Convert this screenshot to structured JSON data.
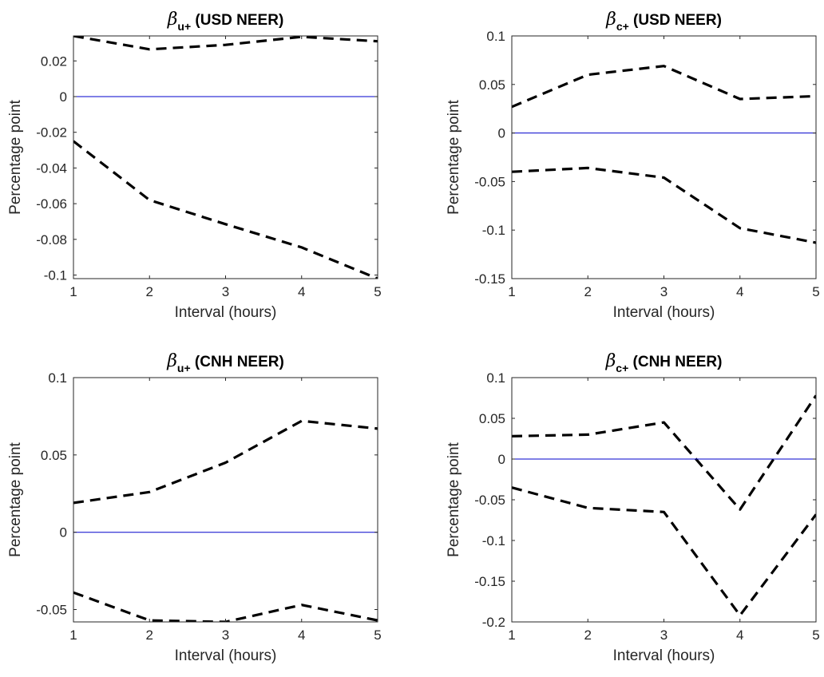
{
  "colors": {
    "bounds": "#000000",
    "zero_line": "#0000cc",
    "axes": "#262626",
    "background": "#ffffff"
  },
  "chart_data": [
    {
      "type": "line",
      "title": "β u+ (USD NEER)",
      "title_symbol": "β",
      "title_subscript": "u+",
      "title_rest": "(USD NEER)",
      "xlabel": "Interval (hours)",
      "ylabel": "Percentage point",
      "xlim": [
        1,
        5
      ],
      "ylim": [
        -0.102,
        0.034
      ],
      "x_ticks": [
        1,
        2,
        3,
        4,
        5
      ],
      "x_tick_labels": [
        "1",
        "2",
        "3",
        "4",
        "5"
      ],
      "y_ticks": [
        -0.1,
        -0.08,
        -0.06,
        -0.04,
        -0.02,
        0,
        0.02
      ],
      "y_tick_labels": [
        "-0.1",
        "-0.08",
        "-0.06",
        "-0.04",
        "-0.02",
        "0",
        "0.02"
      ],
      "x": [
        1,
        2,
        3,
        4,
        5
      ],
      "series": [
        {
          "name": "",
          "style": "dashed",
          "values": [
            0.034,
            0.0265,
            0.029,
            0.0335,
            0.031
          ]
        },
        {
          "name": "",
          "style": "dashed",
          "values": [
            -0.025,
            -0.058,
            -0.0715,
            -0.0845,
            -0.102
          ]
        },
        {
          "name": "",
          "style": "solid",
          "values": [
            0,
            0,
            0,
            0,
            0
          ]
        }
      ]
    },
    {
      "type": "line",
      "title": "β c+ (USD NEER)",
      "title_symbol": "β",
      "title_subscript": "c+",
      "title_rest": "(USD NEER)",
      "xlabel": "Interval (hours)",
      "ylabel": "Percentage point",
      "xlim": [
        1,
        5
      ],
      "ylim": [
        -0.15,
        0.1
      ],
      "x_ticks": [
        1,
        2,
        3,
        4,
        5
      ],
      "x_tick_labels": [
        "1",
        "2",
        "3",
        "4",
        "5"
      ],
      "y_ticks": [
        -0.15,
        -0.1,
        -0.05,
        0,
        0.05,
        0.1
      ],
      "y_tick_labels": [
        "-0.15",
        "-0.1",
        "-0.05",
        "0",
        "0.05",
        "0.1"
      ],
      "x": [
        1,
        2,
        3,
        4,
        5
      ],
      "series": [
        {
          "name": "",
          "style": "dashed",
          "values": [
            0.027,
            0.06,
            0.069,
            0.035,
            0.038
          ]
        },
        {
          "name": "",
          "style": "dashed",
          "values": [
            -0.04,
            -0.036,
            -0.046,
            -0.098,
            -0.113
          ]
        },
        {
          "name": "",
          "style": "solid",
          "values": [
            0,
            0,
            0,
            0,
            0
          ]
        }
      ]
    },
    {
      "type": "line",
      "title": "β u+ (CNH NEER)",
      "title_symbol": "β",
      "title_subscript": "u+",
      "title_rest": "(CNH NEER)",
      "xlabel": "Interval (hours)",
      "ylabel": "Percentage point",
      "xlim": [
        1,
        5
      ],
      "ylim": [
        -0.058,
        0.1
      ],
      "x_ticks": [
        1,
        2,
        3,
        4,
        5
      ],
      "x_tick_labels": [
        "1",
        "2",
        "3",
        "4",
        "5"
      ],
      "y_ticks": [
        -0.05,
        0,
        0.05,
        0.1
      ],
      "y_tick_labels": [
        "-0.05",
        "0",
        "0.05",
        "0.1"
      ],
      "x": [
        1,
        2,
        3,
        4,
        5
      ],
      "series": [
        {
          "name": "",
          "style": "dashed",
          "values": [
            0.019,
            0.026,
            0.045,
            0.072,
            0.067
          ]
        },
        {
          "name": "",
          "style": "dashed",
          "values": [
            -0.039,
            -0.057,
            -0.058,
            -0.047,
            -0.057
          ]
        },
        {
          "name": "",
          "style": "solid",
          "values": [
            0,
            0,
            0,
            0,
            0
          ]
        }
      ]
    },
    {
      "type": "line",
      "title": "β c+ (CNH NEER)",
      "title_symbol": "β",
      "title_subscript": "c+",
      "title_rest": "(CNH NEER)",
      "xlabel": "Interval (hours)",
      "ylabel": "Percentage point",
      "xlim": [
        1,
        5
      ],
      "ylim": [
        -0.2,
        0.1
      ],
      "x_ticks": [
        1,
        2,
        3,
        4,
        5
      ],
      "x_tick_labels": [
        "1",
        "2",
        "3",
        "4",
        "5"
      ],
      "y_ticks": [
        -0.2,
        -0.15,
        -0.1,
        -0.05,
        0,
        0.05,
        0.1
      ],
      "y_tick_labels": [
        "-0.2",
        "-0.15",
        "-0.1",
        "-0.05",
        "0",
        "0.05",
        "0.1"
      ],
      "x": [
        1,
        2,
        3,
        4,
        5
      ],
      "series": [
        {
          "name": "",
          "style": "dashed",
          "values": [
            0.028,
            0.03,
            0.045,
            -0.062,
            0.078
          ]
        },
        {
          "name": "",
          "style": "dashed",
          "values": [
            -0.035,
            -0.06,
            -0.065,
            -0.192,
            -0.068
          ]
        },
        {
          "name": "",
          "style": "solid",
          "values": [
            0,
            0,
            0,
            0,
            0
          ]
        }
      ]
    }
  ]
}
